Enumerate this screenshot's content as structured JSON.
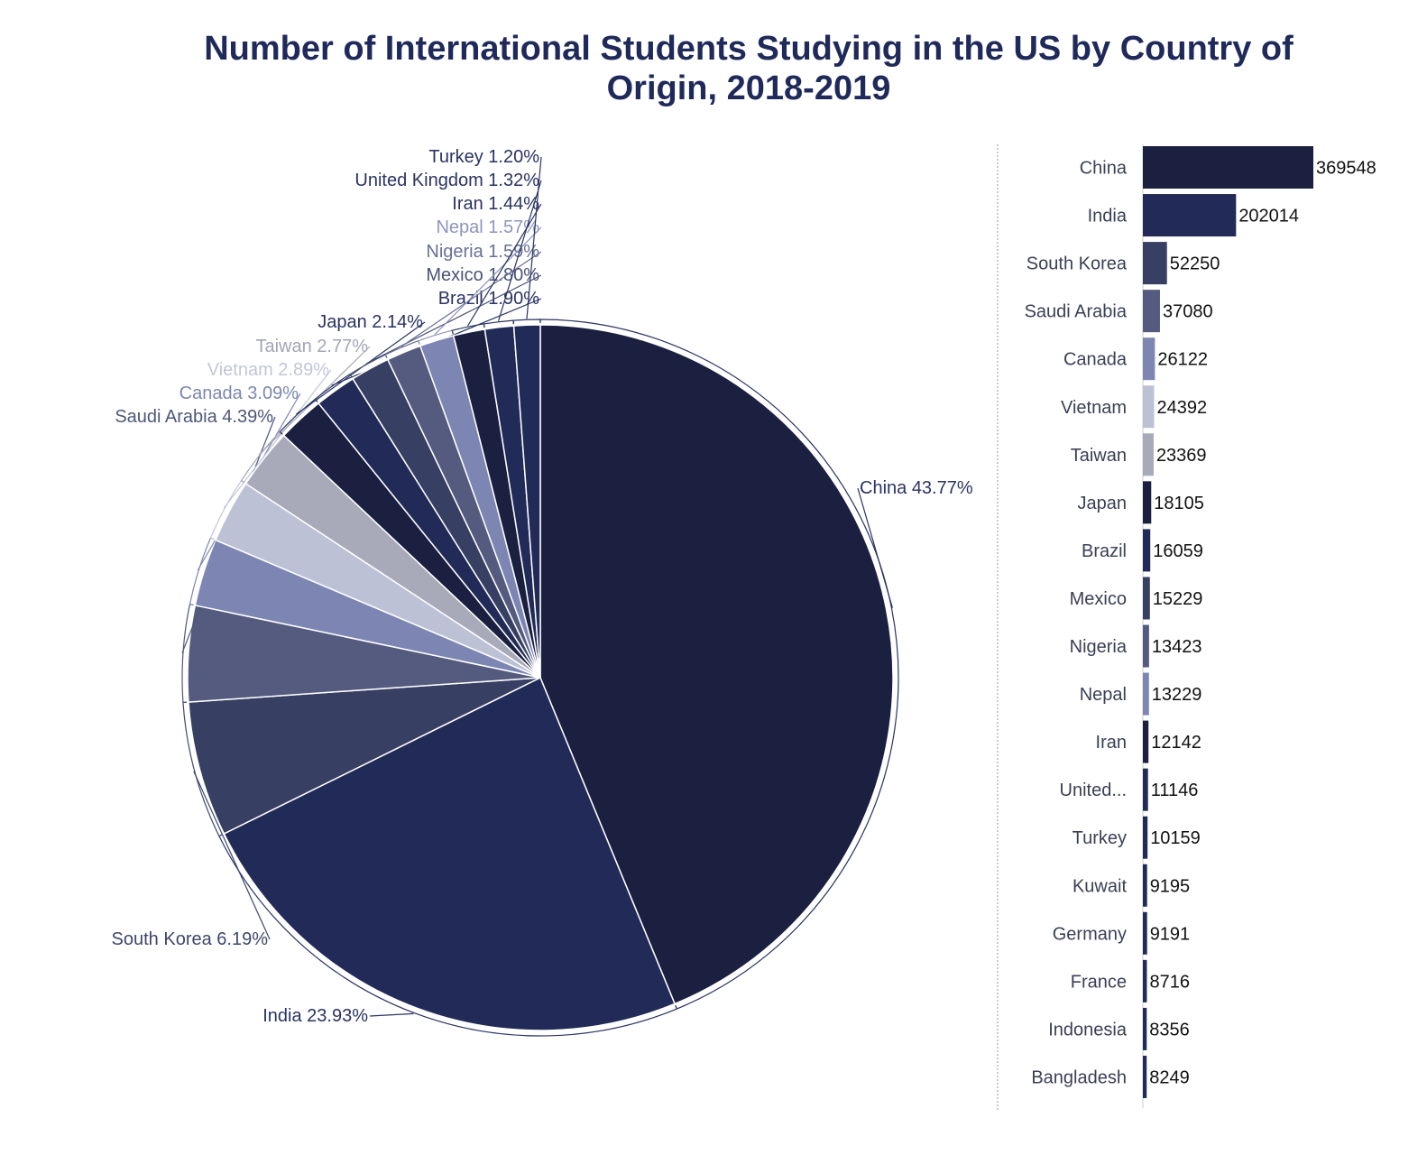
{
  "chart_data": [
    {
      "type": "pie",
      "title": "Number of International Students Studying in the US by Country of Origin, 2018-2019",
      "slices": [
        {
          "label": "China",
          "percent": 43.77,
          "pct_text": "43.77%",
          "color": "#1b2040"
        },
        {
          "label": "India",
          "percent": 23.93,
          "pct_text": "23.93%",
          "color": "#222b58"
        },
        {
          "label": "South Korea",
          "percent": 6.19,
          "pct_text": "6.19%",
          "color": "#373f62"
        },
        {
          "label": "Saudi Arabia",
          "percent": 4.39,
          "pct_text": "4.39%",
          "color": "#555b7e"
        },
        {
          "label": "Canada",
          "percent": 3.09,
          "pct_text": "3.09%",
          "color": "#7d86b2"
        },
        {
          "label": "Vietnam",
          "percent": 2.89,
          "pct_text": "2.89%",
          "color": "#bdc1d6"
        },
        {
          "label": "Taiwan",
          "percent": 2.77,
          "pct_text": "2.77%",
          "color": "#a8a9b9"
        },
        {
          "label": "Japan",
          "percent": 2.14,
          "pct_text": "2.14%",
          "color": "#1b2040"
        },
        {
          "label": "Brazil",
          "percent": 1.9,
          "pct_text": "1.90%",
          "color": "#222b58"
        },
        {
          "label": "Mexico",
          "percent": 1.8,
          "pct_text": "1.80%",
          "color": "#373f62"
        },
        {
          "label": "Nigeria",
          "percent": 1.59,
          "pct_text": "1.59%",
          "color": "#555b7e"
        },
        {
          "label": "Nepal",
          "percent": 1.57,
          "pct_text": "1.57%",
          "color": "#7d86b2"
        },
        {
          "label": "Iran",
          "percent": 1.44,
          "pct_text": "1.44%",
          "color": "#1b2040"
        },
        {
          "label": "United Kingdom",
          "percent": 1.32,
          "pct_text": "1.32%",
          "color": "#222b58"
        },
        {
          "label": "Turkey",
          "percent": 1.2,
          "pct_text": "1.20%",
          "color": "#222b58"
        }
      ]
    },
    {
      "type": "bar",
      "orientation": "horizontal",
      "categories": [
        "China",
        "India",
        "South Korea",
        "Saudi Arabia",
        "Canada",
        "Vietnam",
        "Taiwan",
        "Japan",
        "Brazil",
        "Mexico",
        "Nigeria",
        "Nepal",
        "Iran",
        "United...",
        "Turkey",
        "Kuwait",
        "Germany",
        "France",
        "Indonesia",
        "Bangladesh"
      ],
      "values": [
        369548,
        202014,
        52250,
        37080,
        26122,
        24392,
        23369,
        18105,
        16059,
        15229,
        13423,
        13229,
        12142,
        11146,
        10159,
        9195,
        9191,
        8716,
        8356,
        8249
      ],
      "colors": [
        "#1b2040",
        "#222b58",
        "#373f62",
        "#555b7e",
        "#7d86b2",
        "#bdc1d6",
        "#a8a9b9",
        "#1b2040",
        "#222b58",
        "#373f62",
        "#555b7e",
        "#7d86b2",
        "#1b2040",
        "#222b58",
        "#222b58",
        "#222b58",
        "#222b58",
        "#222b58",
        "#222b58",
        "#222b58"
      ]
    }
  ]
}
